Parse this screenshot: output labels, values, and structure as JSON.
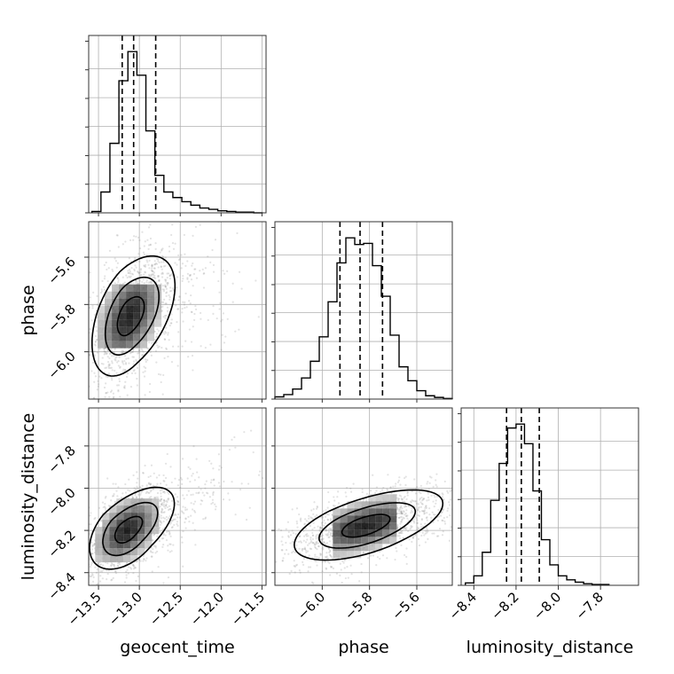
{
  "chart_data": {
    "type": "corner",
    "parameters": [
      {
        "name": "geocent_time",
        "range": [
          -13.62,
          -11.45
        ],
        "ticks": [
          -13.5,
          -13.0,
          -12.5,
          -12.0,
          -11.5
        ],
        "tick_labels": [
          "−13.5",
          "−13.0",
          "−12.5",
          "−12.0",
          "−11.5"
        ],
        "quantiles": [
          -13.21,
          -13.07,
          -12.8
        ]
      },
      {
        "name": "phase",
        "range": [
          -6.2,
          -5.45
        ],
        "ticks": [
          -6.0,
          -5.8,
          -5.6
        ],
        "tick_labels": [
          "−6.0",
          "−5.8",
          "−5.6"
        ],
        "quantiles": [
          -5.925,
          -5.84,
          -5.745
        ]
      },
      {
        "name": "luminosity_distance",
        "range": [
          -8.46,
          -7.62
        ],
        "ticks": [
          -8.4,
          -8.2,
          -8.0,
          -7.8
        ],
        "tick_labels": [
          "−8.4",
          "−8.2",
          "−8.0",
          "−7.8"
        ],
        "quantiles": [
          -8.245,
          -8.175,
          -8.09
        ]
      }
    ],
    "histograms": [
      {
        "parameter": "geocent_time",
        "bin_edges": [
          -13.58,
          -13.47,
          -13.36,
          -13.25,
          -13.14,
          -13.03,
          -12.92,
          -12.81,
          -12.7,
          -12.59,
          -12.48,
          -12.37,
          -12.26,
          -12.15,
          -12.04,
          -11.93,
          -11.82,
          -11.71,
          -11.6,
          -11.49
        ],
        "counts": [
          2,
          30,
          100,
          190,
          232,
          198,
          118,
          54,
          30,
          22,
          16,
          11,
          7,
          5,
          3,
          2,
          1,
          1,
          0
        ]
      },
      {
        "parameter": "phase",
        "bin_edges": [
          -6.2,
          -6.1625,
          -6.125,
          -6.0875,
          -6.05,
          -6.0125,
          -5.975,
          -5.9375,
          -5.9,
          -5.8625,
          -5.825,
          -5.7875,
          -5.75,
          -5.7125,
          -5.675,
          -5.6375,
          -5.6,
          -5.5625,
          -5.525,
          -5.4875,
          -5.45
        ],
        "counts": [
          4,
          8,
          18,
          38,
          68,
          112,
          175,
          245,
          290,
          278,
          280,
          240,
          185,
          115,
          58,
          33,
          15,
          6,
          3,
          1
        ]
      },
      {
        "parameter": "luminosity_distance",
        "bin_edges": [
          -8.44,
          -8.4,
          -8.36,
          -8.32,
          -8.28,
          -8.24,
          -8.2,
          -8.16,
          -8.12,
          -8.08,
          -8.04,
          -8.0,
          -7.96,
          -7.92,
          -7.88,
          -7.84,
          -7.8,
          -7.76
        ],
        "counts": [
          3,
          12,
          42,
          108,
          155,
          200,
          205,
          180,
          120,
          58,
          26,
          12,
          7,
          4,
          2,
          1,
          1
        ]
      }
    ],
    "pairs": [
      {
        "x": "geocent_time",
        "y": "phase",
        "center": [
          -13.12,
          -5.85
        ],
        "spread": [
          0.2,
          0.11
        ],
        "correlation": 0.45,
        "contour_radii": [
          0.55,
          1.1,
          1.7
        ],
        "tail": {
          "direction": [
            1,
            0.25
          ],
          "strength": 0.6
        }
      },
      {
        "x": "geocent_time",
        "y": "luminosity_distance",
        "center": [
          -13.15,
          -8.2
        ],
        "spread": [
          0.2,
          0.08
        ],
        "correlation": 0.45,
        "contour_radii": [
          0.55,
          1.1,
          1.7
        ],
        "tail": {
          "direction": [
            1,
            0.8
          ],
          "strength": 0.7
        }
      },
      {
        "x": "phase",
        "y": "luminosity_distance",
        "center": [
          -5.82,
          -8.18
        ],
        "spread": [
          0.13,
          0.07
        ],
        "correlation": 0.55,
        "contour_radii": [
          0.55,
          1.1,
          1.7
        ],
        "tail": {
          "direction": [
            1,
            0.6
          ],
          "strength": 0.3
        }
      }
    ],
    "grid": true,
    "colors": {
      "points": "#7f7f7f",
      "contour": "#000000",
      "grid": "#b0b0b0",
      "frame": "#333333"
    }
  }
}
